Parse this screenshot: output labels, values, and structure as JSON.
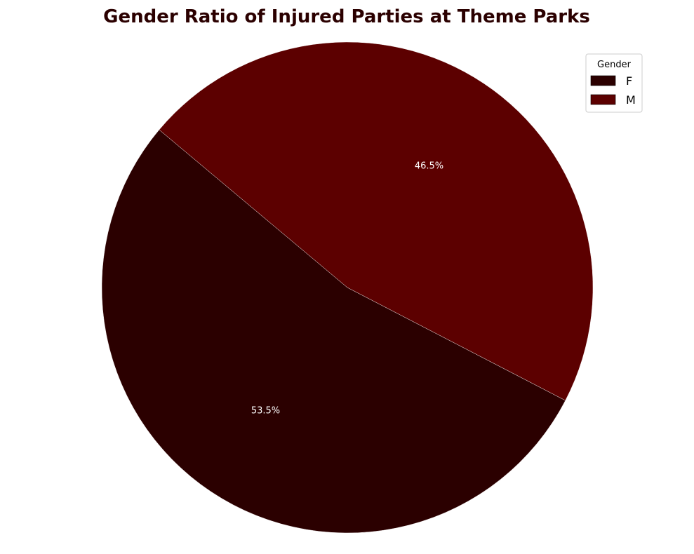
{
  "chart_data": {
    "type": "pie",
    "title": "Gender Ratio of Injured Parties at Theme Parks",
    "slices": [
      {
        "label": "F",
        "value": 53.5,
        "pct_label": "53.5%",
        "color": "#2b0000"
      },
      {
        "label": "M",
        "value": 46.5,
        "pct_label": "46.5%",
        "color": "#5c0000"
      }
    ],
    "start_angle_deg": 140,
    "direction": "counterclockwise",
    "legend": {
      "title": "Gender",
      "placement": "top-right"
    }
  }
}
